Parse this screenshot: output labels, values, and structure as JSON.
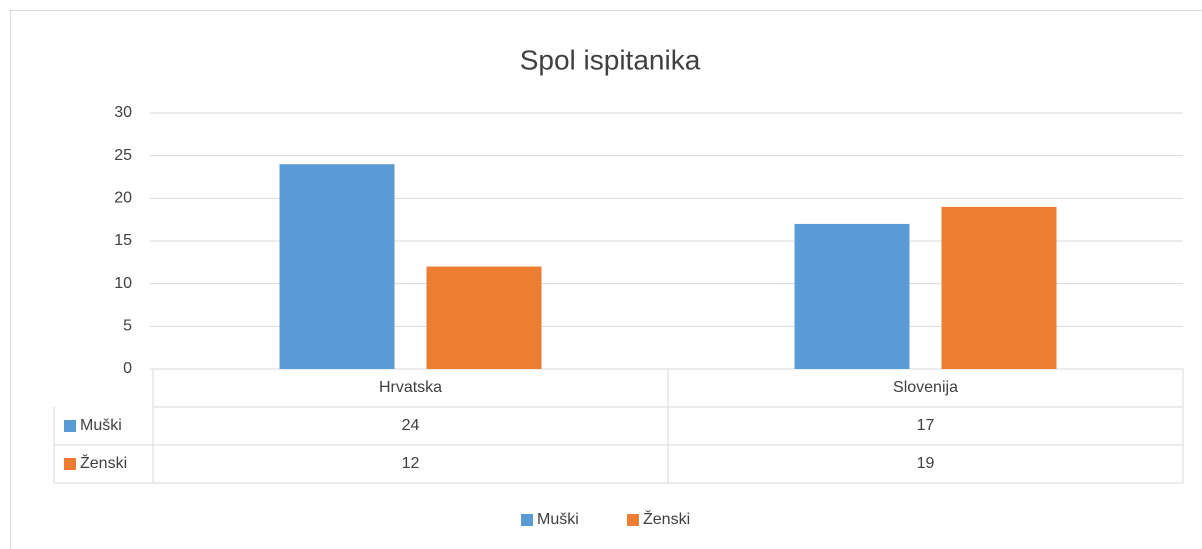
{
  "chart_data": {
    "type": "bar",
    "title": "Spol ispitanika",
    "categories": [
      "Hrvatska",
      "Slovenija"
    ],
    "series": [
      {
        "name": "Muški",
        "color": "#5b9bd5",
        "values": [
          24,
          17
        ]
      },
      {
        "name": "Ženski",
        "color": "#ed7d31",
        "values": [
          12,
          19
        ]
      }
    ],
    "ylim": [
      0,
      30
    ],
    "yticks": [
      0,
      5,
      10,
      15,
      20,
      25,
      30
    ],
    "grid": true,
    "legend": "bottom"
  }
}
